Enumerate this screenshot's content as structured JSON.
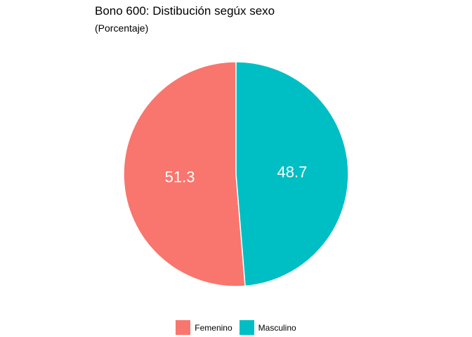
{
  "chart_data": {
    "type": "pie",
    "title": "Bono 600: Distibución segúx sexo",
    "subtitle": "(Porcentaje)",
    "categories": [
      "Femenino",
      "Masculino"
    ],
    "values": [
      51.3,
      48.7
    ],
    "data_labels": [
      "51.3",
      "48.7"
    ],
    "colors": [
      "#F8766D",
      "#00BFC4"
    ],
    "legend_position": "bottom"
  }
}
